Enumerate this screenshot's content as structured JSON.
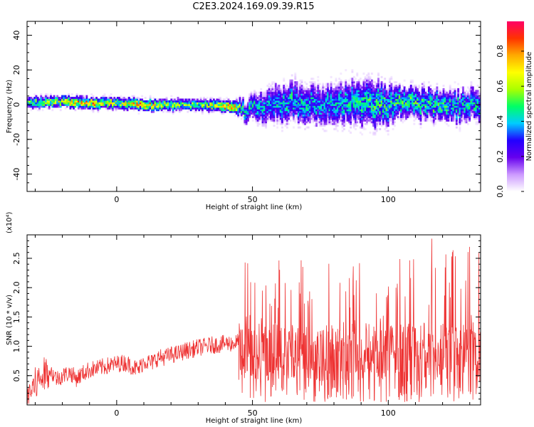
{
  "title": "C2E3.2024.169.09.39.R15",
  "colors": {
    "axis": "#000000",
    "snr_line": "#ee3333",
    "background": "#ffffff"
  },
  "chart_data": [
    {
      "type": "heatmap",
      "title": "C2E3.2024.169.09.39.R15",
      "xlabel": "Height of straight line (km)",
      "ylabel": "Frequency (Hz)",
      "xlim": [
        -33,
        134
      ],
      "ylim": [
        -50,
        48
      ],
      "x_ticks": [
        "0",
        "50",
        "100"
      ],
      "y_ticks": [
        "-40",
        "-20",
        "0",
        "20",
        "40"
      ],
      "colorbar": {
        "label": "Normalized spectral amplitude",
        "range": [
          0.0,
          0.97
        ],
        "ticks": [
          "0.0",
          "0.2",
          "0.4",
          "0.6",
          "0.8"
        ],
        "colormap": [
          "#ffffff",
          "#cc99ff",
          "#6600ee",
          "#2200ff",
          "#00ccff",
          "#00ff66",
          "#aaff00",
          "#ffff00",
          "#ffaa00",
          "#ff3300",
          "#ff0066"
        ]
      },
      "band": [
        {
          "x": -33,
          "center": 1,
          "halfwidth": 3,
          "amp": 0.55
        },
        {
          "x": -20,
          "center": 2,
          "halfwidth": 3,
          "amp": 0.65
        },
        {
          "x": -10,
          "center": 1,
          "halfwidth": 3,
          "amp": 0.85
        },
        {
          "x": 0,
          "center": 1,
          "halfwidth": 3,
          "amp": 0.6
        },
        {
          "x": 10,
          "center": 0,
          "halfwidth": 3,
          "amp": 0.8
        },
        {
          "x": 20,
          "center": 0,
          "halfwidth": 3,
          "amp": 0.6
        },
        {
          "x": 30,
          "center": 0,
          "halfwidth": 3,
          "amp": 0.55
        },
        {
          "x": 42,
          "center": -1,
          "halfwidth": 3,
          "amp": 0.85
        },
        {
          "x": 47,
          "center": -3,
          "halfwidth": 5,
          "amp": 0.45
        },
        {
          "x": 55,
          "center": 0,
          "halfwidth": 9,
          "amp": 0.4
        },
        {
          "x": 65,
          "center": 2,
          "halfwidth": 10,
          "amp": 0.45
        },
        {
          "x": 75,
          "center": 0,
          "halfwidth": 10,
          "amp": 0.4
        },
        {
          "x": 85,
          "center": 2,
          "halfwidth": 11,
          "amp": 0.45
        },
        {
          "x": 95,
          "center": 0,
          "halfwidth": 12,
          "amp": 0.5
        },
        {
          "x": 105,
          "center": 1,
          "halfwidth": 8,
          "amp": 0.5
        },
        {
          "x": 115,
          "center": 1,
          "halfwidth": 8,
          "amp": 0.5
        },
        {
          "x": 125,
          "center": -1,
          "halfwidth": 8,
          "amp": 0.45
        },
        {
          "x": 134,
          "center": 1,
          "halfwidth": 8,
          "amp": 0.45
        }
      ]
    },
    {
      "type": "line",
      "xlabel": "Height of straight line (km)",
      "ylabel": "SNR (10 * v/v)",
      "y_multiplier": "(x10⁴)",
      "xlim": [
        -33,
        134
      ],
      "ylim": [
        0.0,
        2.9
      ],
      "x_ticks": [
        "0",
        "50",
        "100"
      ],
      "y_ticks": [
        "0.5",
        "1.0",
        "1.5",
        "2.0",
        "2.5"
      ],
      "series": [
        {
          "x": [
            -33,
            -30,
            -27,
            -25,
            -22,
            -20,
            -17,
            -15,
            -12,
            -10,
            -7,
            -5,
            -2,
            0,
            3,
            5,
            8,
            10,
            13,
            15,
            18,
            20,
            23,
            25,
            28,
            30,
            33,
            35,
            38,
            40,
            43,
            45
          ],
          "y": [
            0.15,
            0.35,
            0.5,
            0.6,
            0.45,
            0.5,
            0.55,
            0.45,
            0.55,
            0.6,
            0.62,
            0.65,
            0.68,
            0.7,
            0.72,
            0.68,
            0.6,
            0.75,
            0.72,
            0.8,
            0.82,
            0.85,
            0.88,
            0.92,
            0.95,
            0.98,
            1.0,
            1.02,
            1.03,
            1.05,
            1.05,
            1.08
          ]
        }
      ],
      "noise_segment": {
        "x_start": 45,
        "x_end": 134,
        "y_min": 0.05,
        "y_max": 2.9,
        "typical": 0.9
      }
    }
  ]
}
